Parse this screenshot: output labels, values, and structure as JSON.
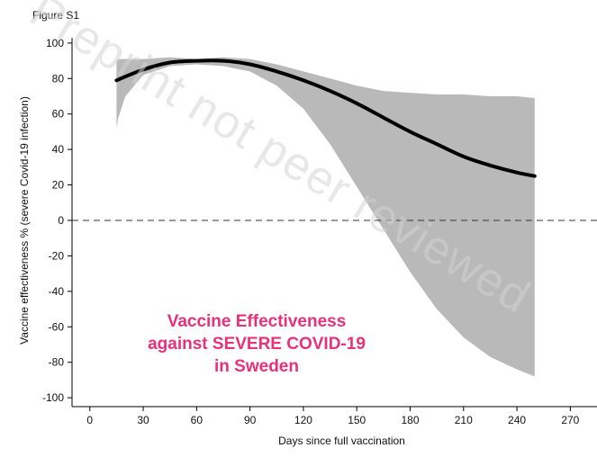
{
  "figure_label": "Figure S1",
  "watermark": "Preprint not peer reviewed",
  "annotation_lines": [
    "Vaccine Effectiveness",
    "against SEVERE COVID-19",
    "in Sweden"
  ],
  "colors": {
    "ci_band": "#b9b9b9",
    "line": "#000000",
    "annotation": "#e8317a",
    "axis": "#000000",
    "watermark": "#d4d4d4"
  },
  "chart_data": {
    "type": "line",
    "title": "",
    "xlabel": "Days since full vaccination",
    "ylabel": "Vaccine effectiveness % (severe Covid-19 infection)",
    "xlim": [
      -10,
      285
    ],
    "ylim": [
      -105,
      105
    ],
    "x_ticks": [
      0,
      30,
      60,
      90,
      120,
      150,
      180,
      210,
      240,
      270
    ],
    "y_ticks": [
      -100,
      -80,
      -60,
      -40,
      -20,
      0,
      20,
      40,
      60,
      80,
      100
    ],
    "reference_line": {
      "y": 0,
      "style": "dashed"
    },
    "series": [
      {
        "name": "Vaccine effectiveness",
        "x": [
          15,
          30,
          45,
          60,
          75,
          90,
          105,
          120,
          135,
          150,
          165,
          180,
          195,
          210,
          225,
          240,
          250
        ],
        "y": [
          79,
          85,
          89,
          90,
          90,
          88,
          84,
          79,
          73,
          66,
          58,
          50,
          43,
          36,
          31,
          27,
          25
        ]
      }
    ],
    "confidence_band": {
      "x": [
        15,
        16,
        20,
        30,
        45,
        60,
        75,
        90,
        105,
        120,
        135,
        150,
        165,
        180,
        195,
        210,
        225,
        240,
        250
      ],
      "lower": [
        52,
        58,
        70,
        82,
        87,
        88,
        87,
        84,
        76,
        63,
        43,
        19,
        -5,
        -29,
        -50,
        -66,
        -77,
        -84,
        -88
      ],
      "upper": [
        90,
        91,
        91,
        91,
        92,
        91,
        92,
        91,
        88,
        84,
        80,
        76,
        73,
        72,
        71,
        71,
        70,
        70,
        69
      ]
    }
  }
}
